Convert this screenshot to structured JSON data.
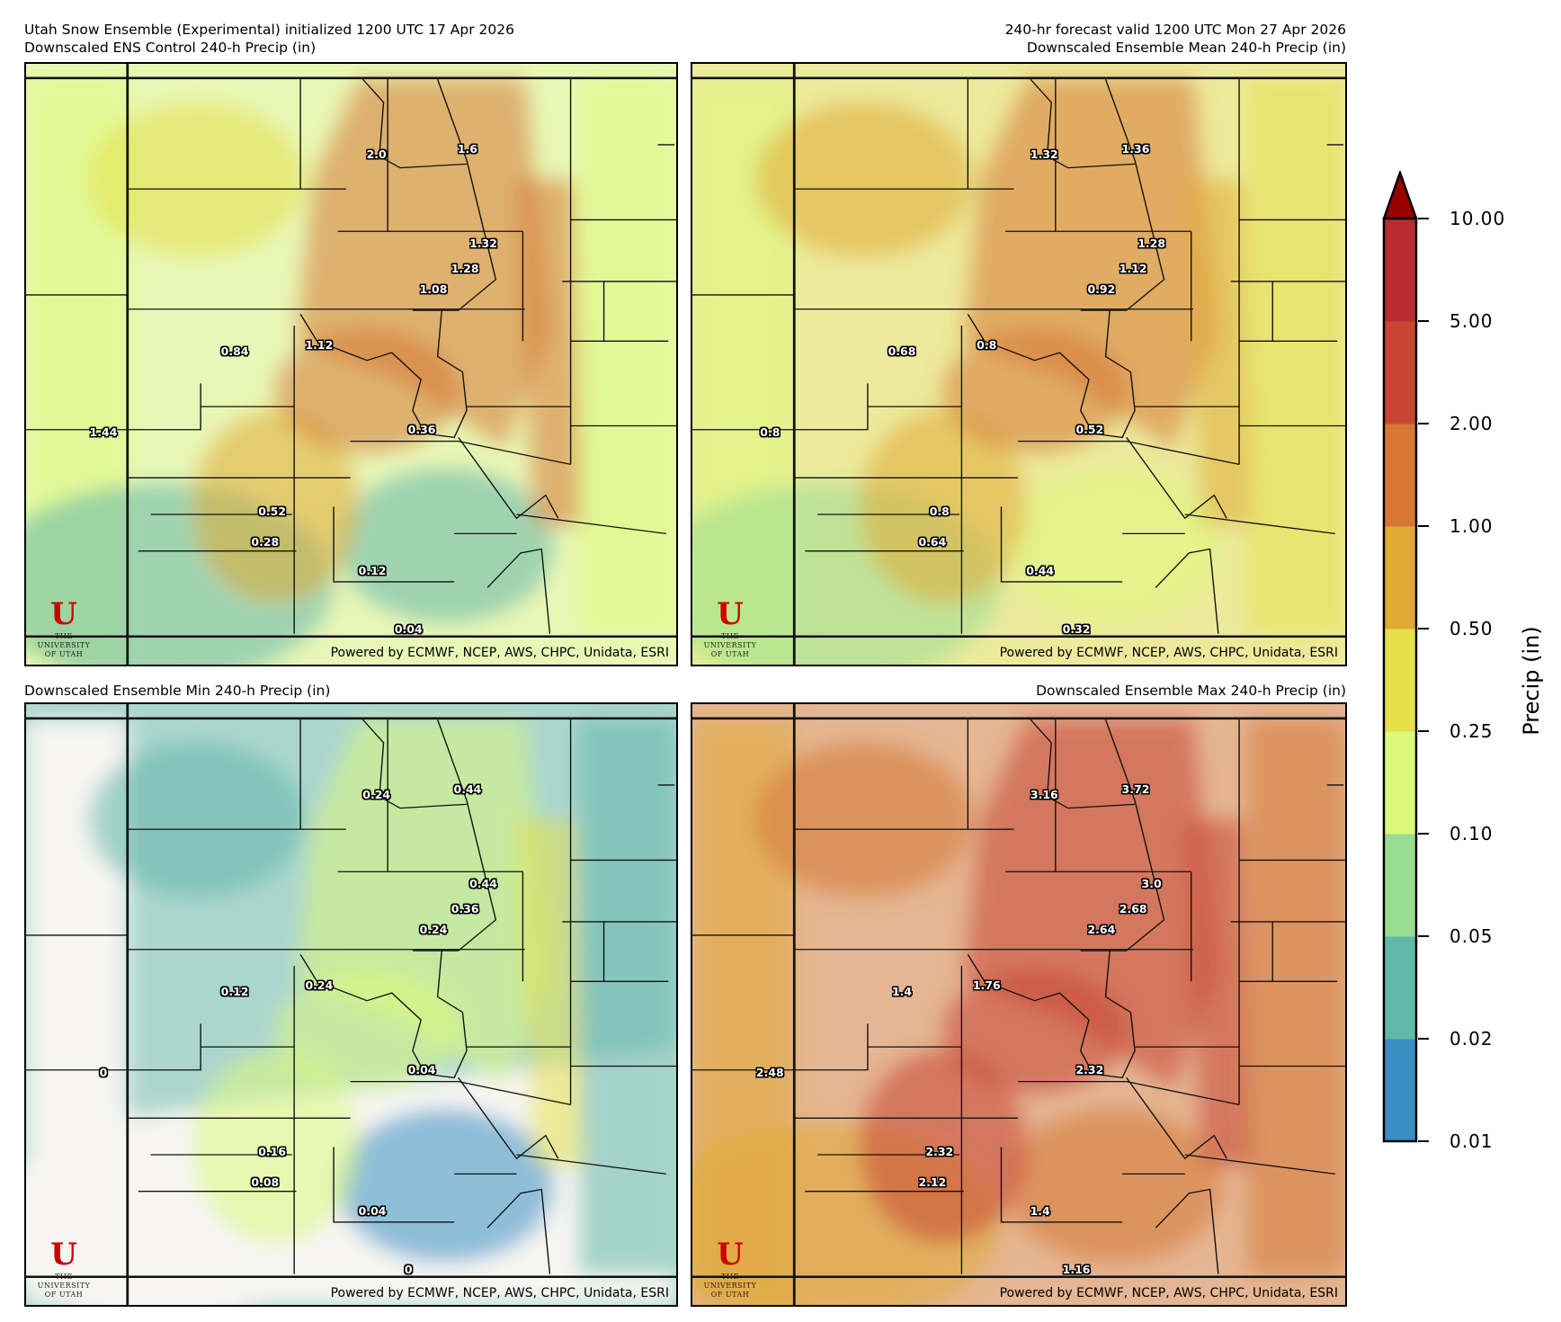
{
  "header": {
    "left_line1": "Utah Snow Ensemble (Experimental) initialized 1200 UTC 17 Apr 2026",
    "right_line1": "240-hr forecast valid 1200 UTC Mon 27 Apr 2026"
  },
  "credit": "Powered by ECMWF, NCEP, AWS, CHPC, Unidata, ESRI",
  "logo": {
    "letter": "U",
    "line1": "THE",
    "line2": "UNIVERSITY",
    "line3": "OF UTAH"
  },
  "panels": [
    {
      "title": "Downscaled ENS Control 240-h Precip (in)",
      "labels": [
        "2.0",
        "1.6",
        "1.32",
        "1.28",
        "1.08",
        "1.12",
        "0.84",
        "1.44",
        "0.36",
        "0.52",
        "0.28",
        "0.12",
        "0.04"
      ]
    },
    {
      "title": "Downscaled Ensemble Mean 240-h Precip (in)",
      "labels": [
        "1.32",
        "1.36",
        "1.28",
        "1.12",
        "0.92",
        "0.8",
        "0.68",
        "0.8",
        "0.52",
        "0.8",
        "0.64",
        "0.44",
        "0.32"
      ]
    },
    {
      "title": "Downscaled Ensemble Min 240-h Precip (in)",
      "labels": [
        "0.24",
        "0.44",
        "0.44",
        "0.36",
        "0.24",
        "0.24",
        "0.12",
        "0",
        "0.04",
        "0.16",
        "0.08",
        "0.04",
        "0"
      ]
    },
    {
      "title": "Downscaled Ensemble Max 240-h Precip (in)",
      "labels": [
        "3.16",
        "3.72",
        "3.0",
        "2.68",
        "2.64",
        "1.76",
        "1.4",
        "2.48",
        "2.32",
        "2.32",
        "2.12",
        "1.4",
        "1.16"
      ]
    }
  ],
  "colorbar": {
    "label": "Precip (in)",
    "ticks": [
      "10.00",
      "5.00",
      "2.00",
      "1.00",
      "0.50",
      "0.25",
      "0.10",
      "0.05",
      "0.02",
      "0.01"
    ],
    "colors": [
      "#3a8fc4",
      "#62b7ab",
      "#98dd92",
      "#ddf97c",
      "#e6e04a",
      "#e0aa34",
      "#d67736",
      "#c64633",
      "#b82b31"
    ],
    "extend_color": "#990000"
  }
}
